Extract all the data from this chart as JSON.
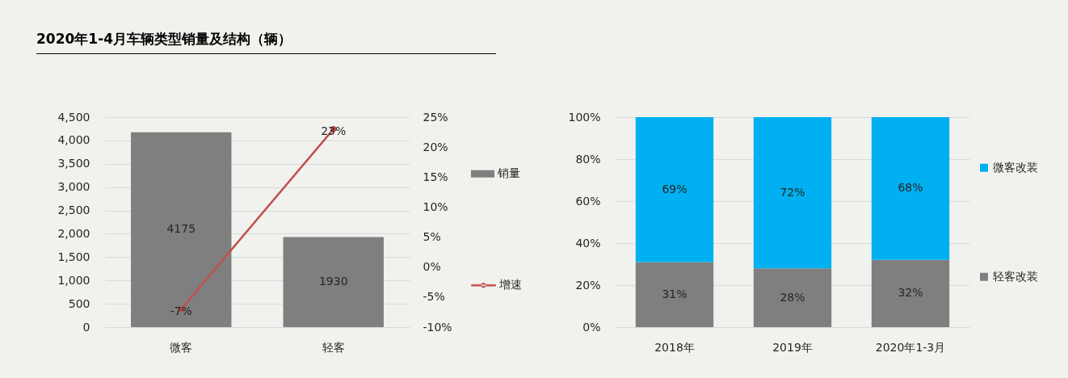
{
  "chart_data": [
    {
      "type": "bar",
      "title": "2020年1-4月车辆类型销量及结构（辆）",
      "categories": [
        "微客",
        "轻客"
      ],
      "series": [
        {
          "name": "销量",
          "color": "#7f7f7f",
          "values": [
            4175,
            1930
          ],
          "value_labels": [
            "4175",
            "1930"
          ]
        },
        {
          "name": "增速",
          "type": "line",
          "axis": "y2",
          "color": "#c0504d",
          "values": [
            -7,
            23
          ],
          "value_labels": [
            "-7%",
            "23%"
          ]
        }
      ],
      "ylim": [
        0,
        4500
      ],
      "yticks": [
        0,
        500,
        {
          "value": 1000,
          "label": "1,000"
        },
        {
          "value": 1500,
          "label": "1,500"
        },
        {
          "value": 2000,
          "label": "2,000"
        },
        {
          "value": 2500,
          "label": "2,500"
        },
        {
          "value": 3000,
          "label": "3,000"
        },
        {
          "value": 3500,
          "label": "3,500"
        },
        {
          "value": 4000,
          "label": "4,000"
        },
        {
          "value": 4500,
          "label": "4,500"
        }
      ],
      "y2lim": [
        -10,
        25
      ],
      "y2ticks": [
        {
          "value": -10,
          "label": "-10%"
        },
        {
          "value": -5,
          "label": "-5%"
        },
        {
          "value": 0,
          "label": "0%"
        },
        {
          "value": 5,
          "label": "5%"
        },
        {
          "value": 10,
          "label": "10%"
        },
        {
          "value": 15,
          "label": "15%"
        },
        {
          "value": 20,
          "label": "20%"
        },
        {
          "value": 25,
          "label": "25%"
        }
      ],
      "grid": "y",
      "legend": "right",
      "marker": "circle"
    },
    {
      "type": "bar",
      "categories": [
        "2018年",
        "2019年",
        "2020年1-3月"
      ],
      "stacked": true,
      "series": [
        {
          "name": "轻客改装",
          "color": "#7f7f7f",
          "values": [
            31,
            28,
            32
          ],
          "value_labels": [
            "31%",
            "28%",
            "32%"
          ]
        },
        {
          "name": "微客改装",
          "color": "#00b0f0",
          "values": [
            69,
            72,
            68
          ],
          "value_labels": [
            "69%",
            "72%",
            "68%"
          ]
        }
      ],
      "ylim": [
        0,
        100
      ],
      "yticks": [
        {
          "value": 0,
          "label": "0%"
        },
        {
          "value": 20,
          "label": "20%"
        },
        {
          "value": 40,
          "label": "40%"
        },
        {
          "value": 60,
          "label": "60%"
        },
        {
          "value": 80,
          "label": "80%"
        },
        {
          "value": 100,
          "label": "100%"
        }
      ],
      "grid": "y",
      "legend": "right"
    }
  ]
}
